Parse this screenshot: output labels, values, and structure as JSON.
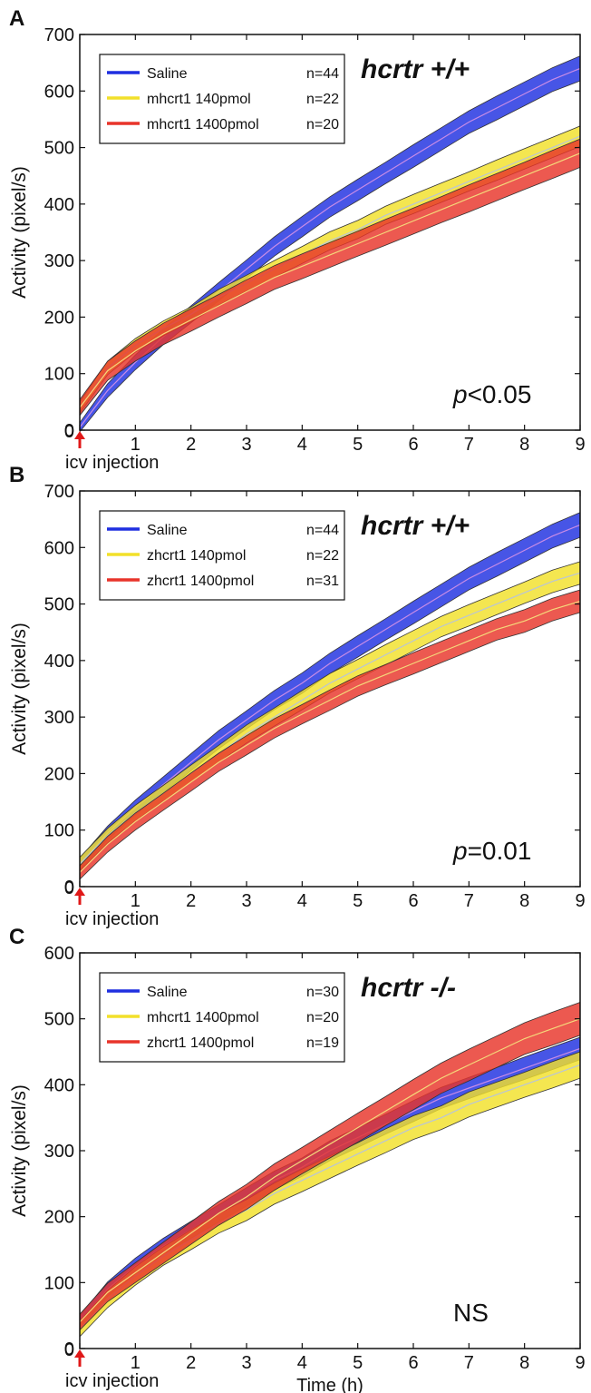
{
  "chart_data": [
    {
      "type": "area",
      "panel_label": "A",
      "genotype": "hcrtr +/+",
      "stat_prefix": "p",
      "stat_suffix": "<0.05",
      "ylabel": "Activity (pixel/s)",
      "xlabel": "",
      "annotation": "icv injection",
      "xlim": [
        0,
        9
      ],
      "ylim": [
        0,
        700
      ],
      "xticks": [
        0,
        1,
        2,
        3,
        4,
        5,
        6,
        7,
        8,
        9
      ],
      "yticks": [
        0,
        100,
        200,
        300,
        400,
        500,
        600,
        700
      ],
      "legend_placement": "top-left",
      "x": [
        0,
        0.5,
        1,
        1.5,
        2,
        2.5,
        3,
        3.5,
        4,
        4.5,
        5,
        5.5,
        6,
        6.5,
        7,
        7.5,
        8,
        8.5,
        9
      ],
      "series": [
        {
          "name": "Saline",
          "n_label": "n=44",
          "color": "#1f2fe0",
          "mean": [
            5,
            70,
            120,
            165,
            205,
            245,
            285,
            325,
            360,
            395,
            425,
            455,
            485,
            515,
            545,
            570,
            595,
            620,
            640
          ],
          "halfwidth": [
            8,
            12,
            13,
            14,
            15,
            16,
            16,
            17,
            18,
            18,
            19,
            19,
            20,
            20,
            20,
            21,
            21,
            21,
            22
          ]
        },
        {
          "name": "mhcrt1   140pmol",
          "n_label": "n=22",
          "color": "#f2e02a",
          "mean": [
            40,
            110,
            150,
            180,
            205,
            235,
            260,
            285,
            310,
            335,
            355,
            380,
            400,
            420,
            440,
            460,
            480,
            500,
            520
          ],
          "halfwidth": [
            10,
            12,
            12,
            13,
            13,
            14,
            14,
            15,
            15,
            16,
            16,
            16,
            17,
            17,
            17,
            18,
            18,
            18,
            18
          ]
        },
        {
          "name": "mhcrt1 1400pmol",
          "n_label": "n=20",
          "color": "#e8342a",
          "mean": [
            40,
            105,
            140,
            170,
            195,
            220,
            245,
            270,
            290,
            310,
            330,
            350,
            370,
            390,
            410,
            430,
            450,
            470,
            490
          ],
          "halfwidth": [
            14,
            17,
            18,
            19,
            20,
            20,
            21,
            21,
            22,
            22,
            22,
            23,
            23,
            23,
            24,
            24,
            24,
            25,
            25
          ]
        }
      ]
    },
    {
      "type": "area",
      "panel_label": "B",
      "genotype": "hcrtr +/+",
      "stat_prefix": "p",
      "stat_suffix": "=0.01",
      "ylabel": "Activity (pixel/s)",
      "xlabel": "",
      "annotation": "icv injection",
      "xlim": [
        0,
        9
      ],
      "ylim": [
        0,
        700
      ],
      "xticks": [
        0,
        1,
        2,
        3,
        4,
        5,
        6,
        7,
        8,
        9
      ],
      "yticks": [
        0,
        100,
        200,
        300,
        400,
        500,
        600,
        700
      ],
      "legend_placement": "top-left",
      "x": [
        0,
        0.5,
        1,
        1.5,
        2,
        2.5,
        3,
        3.5,
        4,
        4.5,
        5,
        5.5,
        6,
        6.5,
        7,
        7.5,
        8,
        8.5,
        9
      ],
      "series": [
        {
          "name": "Saline",
          "n_label": "n=44",
          "color": "#1f2fe0",
          "mean": [
            40,
            95,
            140,
            180,
            220,
            260,
            295,
            330,
            360,
            395,
            425,
            455,
            485,
            515,
            545,
            570,
            595,
            620,
            640
          ],
          "halfwidth": [
            10,
            12,
            13,
            14,
            15,
            16,
            16,
            17,
            18,
            18,
            19,
            19,
            20,
            20,
            20,
            21,
            21,
            21,
            22
          ]
        },
        {
          "name": "zhcrt1   140pmol",
          "n_label": "n=22",
          "color": "#f2e02a",
          "mean": [
            40,
            90,
            130,
            165,
            200,
            235,
            270,
            300,
            330,
            360,
            385,
            410,
            435,
            460,
            480,
            500,
            520,
            540,
            555
          ],
          "halfwidth": [
            12,
            13,
            14,
            14,
            15,
            15,
            16,
            16,
            17,
            17,
            17,
            18,
            18,
            18,
            19,
            19,
            19,
            20,
            20
          ]
        },
        {
          "name": "zhcrt1 1400pmol",
          "n_label": "n=31",
          "color": "#e8342a",
          "mean": [
            25,
            75,
            115,
            150,
            185,
            220,
            250,
            280,
            305,
            330,
            355,
            375,
            395,
            415,
            435,
            455,
            470,
            490,
            505
          ],
          "halfwidth": [
            12,
            14,
            15,
            15,
            16,
            16,
            17,
            17,
            17,
            18,
            18,
            18,
            19,
            19,
            19,
            19,
            20,
            20,
            20
          ]
        }
      ]
    },
    {
      "type": "area",
      "panel_label": "C",
      "genotype": "hcrtr -/-",
      "stat_prefix": "",
      "stat_suffix": "NS",
      "ylabel": "Activity (pixel/s)",
      "xlabel": "Time (h)",
      "annotation": "icv injection",
      "xlim": [
        0,
        9
      ],
      "ylim": [
        0,
        600
      ],
      "xticks": [
        0,
        1,
        2,
        3,
        4,
        5,
        6,
        7,
        8,
        9
      ],
      "yticks": [
        0,
        100,
        200,
        300,
        400,
        500,
        600
      ],
      "legend_placement": "top-left",
      "x": [
        0,
        0.5,
        1,
        1.5,
        2,
        2.5,
        3,
        3.5,
        4,
        4.5,
        5,
        5.5,
        6,
        6.5,
        7,
        7.5,
        8,
        8.5,
        9
      ],
      "series": [
        {
          "name": "Saline",
          "n_label": "n=30",
          "color": "#1f2fe0",
          "mean": [
            40,
            90,
            125,
            155,
            180,
            205,
            230,
            255,
            275,
            300,
            320,
            340,
            360,
            380,
            395,
            410,
            425,
            440,
            455
          ],
          "halfwidth": [
            10,
            11,
            12,
            12,
            13,
            13,
            14,
            14,
            14,
            15,
            15,
            15,
            16,
            16,
            16,
            16,
            17,
            17,
            17
          ]
        },
        {
          "name": "mhcrt1 1400pmol",
          "n_label": "n=20",
          "color": "#f2e02a",
          "mean": [
            30,
            75,
            110,
            140,
            165,
            190,
            210,
            235,
            255,
            275,
            295,
            315,
            335,
            350,
            370,
            385,
            400,
            415,
            430
          ],
          "halfwidth": [
            12,
            13,
            14,
            14,
            15,
            15,
            16,
            16,
            17,
            17,
            17,
            18,
            18,
            18,
            19,
            19,
            19,
            20,
            20
          ]
        },
        {
          "name": "zhcrt1  1400pmol",
          "n_label": "n=19",
          "color": "#e8342a",
          "mean": [
            40,
            85,
            115,
            145,
            175,
            205,
            230,
            260,
            285,
            310,
            335,
            360,
            385,
            410,
            430,
            450,
            470,
            485,
            500
          ],
          "halfwidth": [
            12,
            14,
            15,
            16,
            17,
            18,
            19,
            20,
            20,
            21,
            22,
            22,
            23,
            23,
            24,
            24,
            24,
            25,
            25
          ]
        }
      ]
    }
  ]
}
